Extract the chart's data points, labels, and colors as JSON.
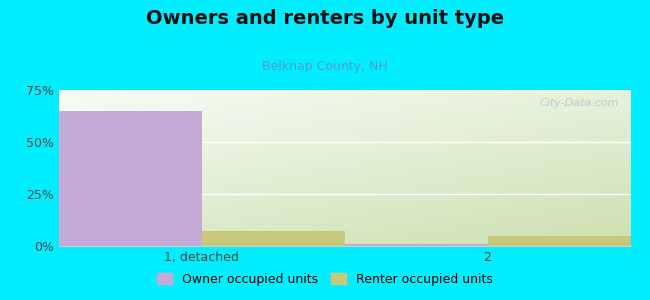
{
  "title": "Owners and renters by unit type",
  "subtitle": "Belknap County, NH",
  "categories": [
    "1, detached",
    "2"
  ],
  "owner_values": [
    65,
    1
  ],
  "renter_values": [
    7,
    5
  ],
  "owner_color": "#c4aad4",
  "renter_color": "#c8c87a",
  "background_color": "#00eeff",
  "chart_bg_topleft": "#f8faf8",
  "chart_bg_bottomright": "#cce0b0",
  "ylim": [
    0,
    75
  ],
  "yticks": [
    0,
    25,
    50,
    75
  ],
  "ytick_labels": [
    "0%",
    "25%",
    "50%",
    "75%"
  ],
  "bar_width": 0.25,
  "title_fontsize": 14,
  "subtitle_fontsize": 9,
  "legend_fontsize": 9,
  "watermark": "City-Data.com",
  "x_positions": [
    0.25,
    0.75
  ],
  "xlim": [
    0,
    1
  ]
}
